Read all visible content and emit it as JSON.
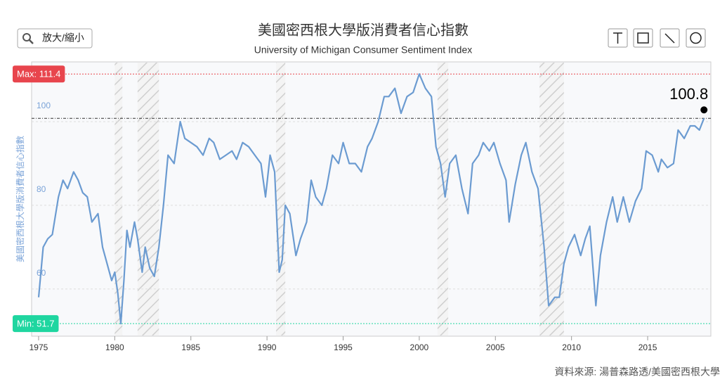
{
  "chart_data": {
    "type": "line",
    "title": "美國密西根大學版消費者信心指數",
    "subtitle": "University of Michigan Consumer Sentiment Index",
    "y_label": "美國密西根大學版消費者信心指數",
    "source": "資料來源: 湯普森路透/美國密西根大學",
    "zoom_button": "放大/縮小",
    "xlim": [
      1974.54,
      2019.15
    ],
    "xticks": [
      1975,
      1980,
      1985,
      1990,
      1995,
      2000,
      2005,
      2010,
      2015
    ],
    "ylim": [
      48.7,
      114.3
    ],
    "yticks": [
      60,
      80,
      100
    ],
    "grid": true,
    "max_line": {
      "value": 111.4,
      "label": "Max: 111.4",
      "color": "#e8454d"
    },
    "min_line": {
      "value": 51.7,
      "label": "Min: 51.7",
      "color": "#1fd6a0"
    },
    "last_annotation": {
      "x": 2018.7,
      "value": 100.8,
      "label": "100.8"
    },
    "shaded_periods": [
      [
        1980.0,
        1980.5
      ],
      [
        1981.5,
        1982.9
      ],
      [
        1990.6,
        1991.2
      ],
      [
        2001.2,
        2001.9
      ],
      [
        2007.9,
        2009.5
      ]
    ],
    "x": [
      1975.0,
      1975.3,
      1975.6,
      1975.9,
      1976.3,
      1976.6,
      1976.9,
      1977.3,
      1977.6,
      1977.9,
      1978.2,
      1978.5,
      1978.9,
      1979.2,
      1979.5,
      1979.8,
      1980.0,
      1980.2,
      1980.4,
      1980.6,
      1980.8,
      1981.0,
      1981.3,
      1981.5,
      1981.8,
      1982.0,
      1982.3,
      1982.6,
      1982.9,
      1983.2,
      1983.5,
      1983.9,
      1984.3,
      1984.6,
      1985.0,
      1985.4,
      1985.8,
      1986.2,
      1986.5,
      1986.9,
      1987.3,
      1987.7,
      1988.0,
      1988.4,
      1988.8,
      1989.2,
      1989.6,
      1989.9,
      1990.2,
      1990.5,
      1990.8,
      1991.0,
      1991.2,
      1991.5,
      1991.9,
      1992.2,
      1992.6,
      1992.9,
      1993.2,
      1993.6,
      1993.9,
      1994.3,
      1994.7,
      1995.0,
      1995.4,
      1995.8,
      1996.2,
      1996.6,
      1996.9,
      1997.3,
      1997.7,
      1998.0,
      1998.4,
      1998.8,
      1999.2,
      1999.6,
      2000.0,
      2000.4,
      2000.8,
      2001.1,
      2001.4,
      2001.7,
      2002.0,
      2002.4,
      2002.8,
      2003.2,
      2003.5,
      2003.9,
      2004.2,
      2004.6,
      2004.9,
      2005.3,
      2005.7,
      2005.9,
      2006.3,
      2006.7,
      2007.0,
      2007.4,
      2007.8,
      2008.2,
      2008.5,
      2008.9,
      2009.2,
      2009.5,
      2009.8,
      2010.2,
      2010.6,
      2010.9,
      2011.2,
      2011.6,
      2011.9,
      2012.3,
      2012.7,
      2013.0,
      2013.4,
      2013.8,
      2014.2,
      2014.6,
      2014.9,
      2015.3,
      2015.7,
      2015.9,
      2016.3,
      2016.7,
      2017.0,
      2017.4,
      2017.8,
      2018.1,
      2018.4,
      2018.7
    ],
    "series": [
      {
        "name": "美國密西根大學版消費者信心指數",
        "color": "#6b9bd1",
        "values": [
          58,
          70,
          72,
          73,
          82,
          86,
          84,
          88,
          86,
          83,
          82,
          76,
          78,
          70,
          66,
          62,
          64,
          59,
          51.7,
          62,
          74,
          70,
          76,
          72,
          64,
          70,
          65,
          63,
          70,
          80,
          92,
          90,
          100,
          96,
          95,
          94,
          92,
          96,
          95,
          91,
          92,
          93,
          91,
          95,
          94,
          92,
          90,
          82,
          92,
          88,
          64,
          67,
          80,
          78,
          68,
          72,
          76,
          86,
          82,
          80,
          84,
          92,
          90,
          95,
          90,
          90,
          88,
          94,
          96,
          100,
          106,
          106,
          108,
          102,
          106,
          107,
          111.4,
          108,
          106,
          94,
          90,
          82,
          90,
          92,
          84,
          78,
          90,
          92,
          95,
          93,
          95,
          90,
          86,
          76,
          85,
          92,
          95,
          88,
          84,
          70,
          56,
          58,
          58,
          66,
          70,
          73,
          68,
          72,
          75,
          56,
          68,
          76,
          82,
          76,
          82,
          76,
          81,
          84,
          93,
          92,
          88,
          91,
          89,
          90,
          98,
          96,
          99,
          99,
          98,
          100.8
        ]
      }
    ]
  }
}
